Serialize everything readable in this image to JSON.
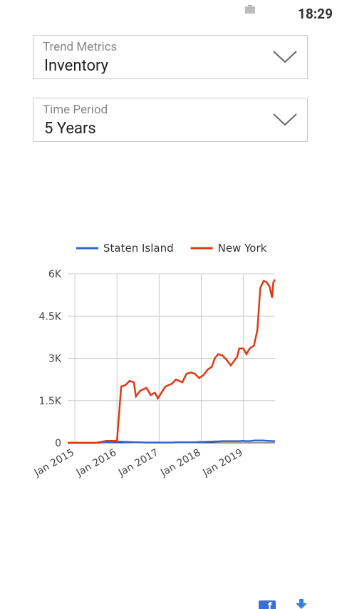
{
  "status_bar": {
    "time": "18:29"
  },
  "dropdowns": [
    {
      "label": "Trend Metrics",
      "value": "Inventory"
    },
    {
      "label": "Time Period",
      "value": "5 Years"
    }
  ],
  "chart_data": {
    "type": "line",
    "x": [
      2014.83,
      2015.0,
      2015.25,
      2015.5,
      2015.75,
      2016.0,
      2016.1,
      2016.2,
      2016.3,
      2016.4,
      2016.45,
      2016.55,
      2016.7,
      2016.8,
      2016.9,
      2016.97,
      2017.15,
      2017.3,
      2017.4,
      2017.55,
      2017.65,
      2017.75,
      2017.85,
      2017.95,
      2018.05,
      2018.15,
      2018.25,
      2018.32,
      2018.4,
      2018.5,
      2018.6,
      2018.7,
      2018.85,
      2018.9,
      2019.0,
      2019.07,
      2019.15,
      2019.25,
      2019.33,
      2019.4,
      2019.48,
      2019.55,
      2019.62,
      2019.68,
      2019.71,
      2019.75
    ],
    "series": [
      {
        "name": "Staten Island",
        "color": "#3366cc",
        "values": [
          0,
          0,
          0,
          0,
          20,
          40,
          40,
          30,
          30,
          20,
          20,
          20,
          10,
          10,
          10,
          10,
          10,
          10,
          20,
          20,
          20,
          20,
          20,
          30,
          30,
          40,
          40,
          50,
          50,
          60,
          60,
          60,
          60,
          60,
          70,
          60,
          60,
          80,
          80,
          80,
          80,
          70,
          70,
          60,
          60,
          60
        ]
      },
      {
        "name": "New York",
        "color": "#dc3912",
        "values": [
          0,
          0,
          0,
          0,
          70,
          70,
          2000,
          2050,
          2200,
          2150,
          1650,
          1850,
          1950,
          1700,
          1780,
          1580,
          2000,
          2100,
          2250,
          2150,
          2450,
          2500,
          2450,
          2300,
          2400,
          2600,
          2700,
          3000,
          3150,
          3100,
          2950,
          2750,
          3050,
          3350,
          3350,
          3150,
          3350,
          3450,
          4000,
          5500,
          5750,
          5700,
          5550,
          5150,
          5700,
          5800
        ]
      }
    ],
    "xlim": [
      2014.83,
      2019.75
    ],
    "xticks": [
      {
        "value": 2015,
        "label": "Jan 2015"
      },
      {
        "value": 2016,
        "label": "Jan 2016"
      },
      {
        "value": 2017,
        "label": "Jan 2017"
      },
      {
        "value": 2018,
        "label": "Jan 2018"
      },
      {
        "value": 2019,
        "label": "Jan 2019"
      }
    ],
    "ylim": [
      0,
      6000
    ],
    "yticks": [
      0,
      {
        "value": 1500,
        "label": "1.5K"
      },
      {
        "value": 3000,
        "label": "3K"
      },
      {
        "value": 4500,
        "label": "4.5K"
      },
      {
        "value": 6000,
        "label": "6K"
      }
    ],
    "grid": true,
    "legend": "top"
  }
}
